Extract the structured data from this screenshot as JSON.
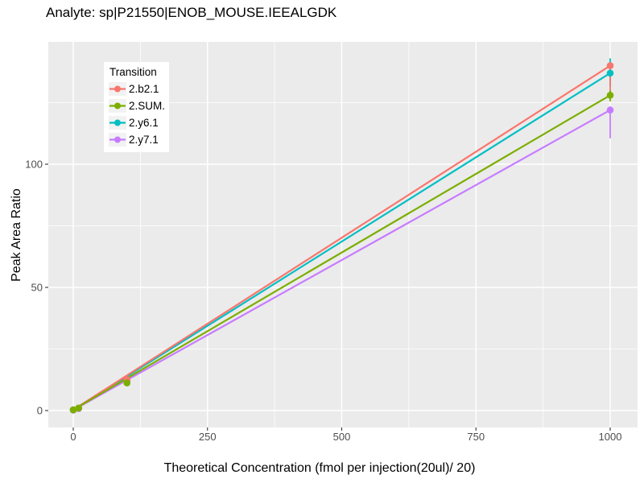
{
  "chart_data": {
    "type": "line",
    "title": "Analyte: sp|P21550|ENOB_MOUSE.IEEALGDK",
    "xlabel": "Theoretical Concentration (fmol per injection(20ul)/ 20)",
    "ylabel": "Peak Area Ratio",
    "x_ticks": [
      0,
      250,
      500,
      750,
      1000
    ],
    "y_ticks": [
      0,
      50,
      100
    ],
    "xlim": [
      -46,
      1051
    ],
    "ylim": [
      -6.9,
      149.7
    ],
    "grid": true,
    "panel_bg": "#EBEBEB",
    "grid_color": "#FFFFFF",
    "tick_label_color": "#4D4D4D",
    "legend": {
      "title": "Transition",
      "position": "top-left-inset",
      "items": [
        {
          "label": "2.b2.1",
          "color": "#F8766D"
        },
        {
          "label": "2.SUM.",
          "color": "#7CAE00"
        },
        {
          "label": "2.y6.1",
          "color": "#00BFC4"
        },
        {
          "label": "2.y7.1",
          "color": "#C77CFF"
        }
      ]
    },
    "series": [
      {
        "name": "2.y6.1",
        "color": "#00BFC4",
        "line": [
          [
            0,
            0.2
          ],
          [
            1000,
            137
          ]
        ],
        "points": [
          [
            0,
            0.2
          ],
          [
            10,
            0.9
          ],
          [
            100,
            12.2
          ],
          [
            1000,
            137
          ]
        ],
        "error_bars": [
          {
            "x": 1000,
            "low": 131.5,
            "high": 143
          }
        ]
      },
      {
        "name": "2.y7.1",
        "color": "#C77CFF",
        "line": [
          [
            0,
            0.2
          ],
          [
            1000,
            122
          ]
        ],
        "points": [
          [
            0,
            0.2
          ],
          [
            10,
            0.8
          ],
          [
            100,
            11.8
          ],
          [
            1000,
            122
          ]
        ],
        "error_bars": [
          {
            "x": 1000,
            "low": 110.5,
            "high": 123.5
          }
        ]
      },
      {
        "name": "2.b2.1",
        "color": "#F8766D",
        "line": [
          [
            0,
            0.3
          ],
          [
            1000,
            140
          ]
        ],
        "points": [
          [
            0,
            0.3
          ],
          [
            10,
            1.0
          ],
          [
            100,
            12.6
          ],
          [
            1000,
            140
          ]
        ],
        "error_bars": [
          {
            "x": 1000,
            "low": 129,
            "high": 140.5
          }
        ]
      },
      {
        "name": "2.SUM.",
        "color": "#7CAE00",
        "line": [
          [
            0,
            0.3
          ],
          [
            1000,
            128
          ]
        ],
        "points": [
          [
            0,
            0.3
          ],
          [
            10,
            1.0
          ],
          [
            100,
            11.2
          ],
          [
            1000,
            128
          ]
        ],
        "error_bars": [
          {
            "x": 1000,
            "low": 125.5,
            "high": 130
          }
        ]
      }
    ]
  }
}
